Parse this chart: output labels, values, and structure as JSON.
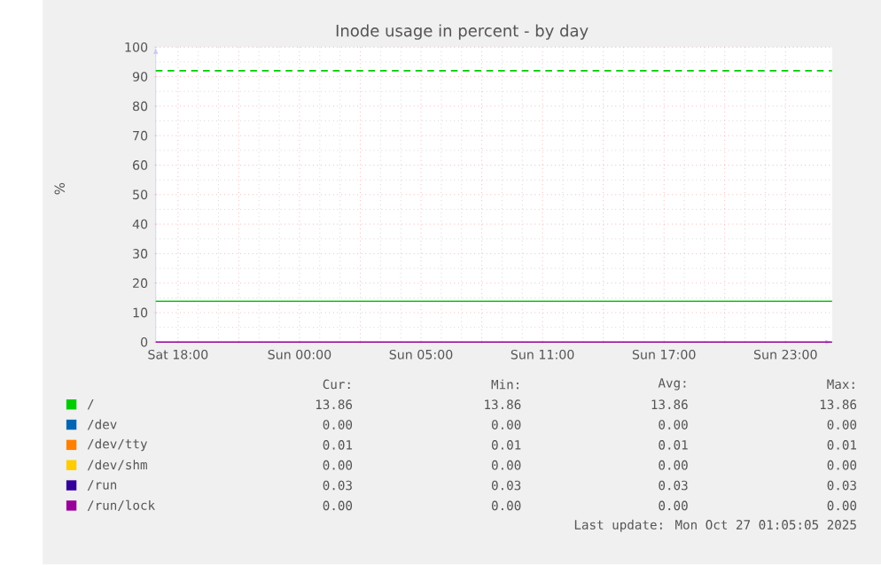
{
  "chart_data": {
    "type": "line",
    "title": "Inode usage in percent - by day",
    "ylabel": "%",
    "x": [
      "2025-10-25T14:54",
      "2025-10-27T00:18"
    ],
    "series": [
      {
        "name": "/",
        "color": "#00cc00",
        "values": [
          13.86,
          13.86
        ]
      },
      {
        "name": "/dev",
        "color": "#0066b3",
        "values": [
          null,
          null
        ]
      },
      {
        "name": "/dev/tty",
        "color": "#ff8000",
        "values": [
          null,
          null
        ]
      },
      {
        "name": "/dev/shm",
        "color": "#ffcc00",
        "values": [
          null,
          null
        ]
      },
      {
        "name": "/run",
        "color": "#330099",
        "values": [
          null,
          null
        ]
      },
      {
        "name": "/run/lock",
        "color": "#990099",
        "values": [
          0.0,
          0.0
        ]
      }
    ],
    "xlim": [
      "2025-10-25T14:54",
      "2025-10-27T00:18"
    ],
    "xticks": [
      {
        "value": "2025-10-25T16:00",
        "label": "Sat 18:00"
      },
      {
        "value": "2025-10-25T19:00",
        "label": null
      },
      {
        "value": "2025-10-25T22:00",
        "label": "Sun 00:00"
      },
      {
        "value": "2025-10-26T01:00",
        "label": null
      },
      {
        "value": "2025-10-26T04:00",
        "label": "Sun 05:00"
      },
      {
        "value": "2025-10-26T07:00",
        "label": null
      },
      {
        "value": "2025-10-26T10:00",
        "label": "Sun 11:00"
      },
      {
        "value": "2025-10-26T13:00",
        "label": null
      },
      {
        "value": "2025-10-26T16:00",
        "label": "Sun 17:00"
      },
      {
        "value": "2025-10-26T19:00",
        "label": null
      },
      {
        "value": "2025-10-26T22:00",
        "label": "Sun 23:00"
      }
    ],
    "ylim": [
      0,
      100
    ],
    "yticks": [
      0,
      10,
      20,
      30,
      40,
      50,
      60,
      70,
      80,
      90,
      100
    ],
    "grid": true,
    "legend": "bottom left",
    "marker": "none",
    "line_style": "solid",
    "ref_lines": [
      {
        "axis": "y",
        "value": 92,
        "color": "#00cc00",
        "line_style": "dashed"
      }
    ],
    "annotations": [
      "Cur:",
      "Min:",
      "Avg:",
      "Max:",
      "13.86",
      "13.86",
      "13.86",
      "13.86",
      "0.00",
      "0.00",
      "0.00",
      "0.00",
      "0.01",
      "0.01",
      "0.01",
      "0.01",
      "0.00",
      "0.00",
      "0.00",
      "0.00",
      "0.03",
      "0.03",
      "0.03",
      "0.03",
      "0.00",
      "0.00",
      "0.00",
      "0.00",
      "Last update: Mon Oct 27 01:05:05 2025"
    ]
  }
}
